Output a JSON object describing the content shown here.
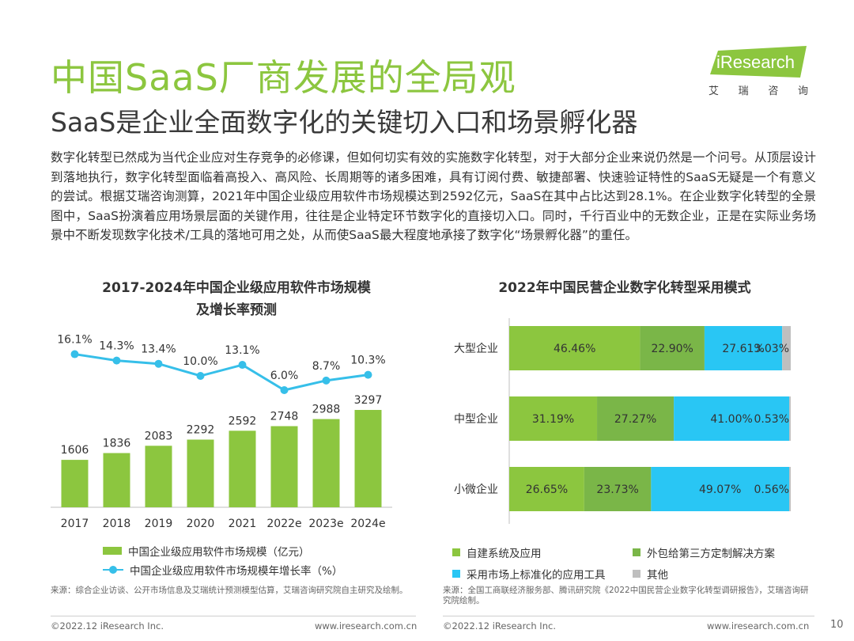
{
  "title": "中国SaaS厂商发展的全局观",
  "subtitle": "SaaS是企业全面数字化的关键切入口和场景孵化器",
  "logo": {
    "text": "iResearch",
    "sub": [
      "艾",
      "瑞",
      "咨",
      "询"
    ]
  },
  "body_text": "数字化转型已然成为当代企业应对生存竞争的必修课，但如何切实有效的实施数字化转型，对于大部分企业来说仍然是一个问号。从顶层设计到落地执行，数字化转型面临着高投入、高风险、长周期等的诸多困难，具有订阅付费、敏捷部署、快速验证特性的SaaS无疑是一个有意义的尝试。根据艾瑞咨询测算，2021年中国企业级应用软件市场规模达到2592亿元，SaaS在其中占比达到28.1%。在企业数字化转型的全景图中，SaaS扮演着应用场景层面的关键作用，往往是企业特定环节数字化的直接切入口。同时，千行百业中的无数企业，正是在实际业务场景中不断发现数字化技术/工具的落地可用之处，从而使SaaS最大程度地承接了数字化“场景孵化器”的重任。",
  "colors": {
    "green": "#8cc63f",
    "mid_green": "#7ab648",
    "blue": "#29c6f4",
    "line_blue": "#36bfe9",
    "gray": "#bfbfbf"
  },
  "chart_data": [
    {
      "type": "bar+line",
      "title_lines": [
        "2017-2024年中国企业级应用软件市场规模",
        "及增长率预测"
      ],
      "categories": [
        "2017",
        "2018",
        "2019",
        "2020",
        "2021",
        "2022e",
        "2023e",
        "2024e"
      ],
      "series": [
        {
          "name": "中国企业级应用软件市场规模（亿元）",
          "kind": "bar",
          "values": [
            1606,
            1836,
            2083,
            2292,
            2592,
            2748,
            2988,
            3297
          ],
          "labels": [
            "1606",
            "1836",
            "2083",
            "2292",
            "2592",
            "2748",
            "2988",
            "3297"
          ]
        },
        {
          "name": "中国企业级应用软件市场规模年增长率（%）",
          "kind": "line",
          "values": [
            16.1,
            14.3,
            13.4,
            10.0,
            13.1,
            6.0,
            8.7,
            10.3
          ],
          "labels": [
            "16.1%",
            "14.3%",
            "13.4%",
            "10.0%",
            "13.1%",
            "6.0%",
            "8.7%",
            "10.3%"
          ]
        }
      ],
      "legend_position": "bottom",
      "grid": false,
      "source": "来源：综合企业访谈、公开市场信息及艾瑞统计预测模型估算，艾瑞咨询研究院自主研究及绘制。"
    },
    {
      "type": "bar",
      "stacked": "percent",
      "orientation": "horizontal",
      "title": "2022年中国民营企业数字化转型采用模式",
      "categories": [
        "大型企业",
        "中型企业",
        "小微企业"
      ],
      "series": [
        {
          "name": "自建系统及应用",
          "values": [
            46.46,
            31.19,
            26.65
          ],
          "labels": [
            "46.46%",
            "31.19%",
            "26.65%"
          ]
        },
        {
          "name": "外包给第三方定制解决方案",
          "values": [
            22.9,
            27.27,
            23.73
          ],
          "labels": [
            "22.90%",
            "27.27%",
            "23.73%"
          ]
        },
        {
          "name": "采用市场上标准化的应用工具",
          "values": [
            27.61,
            41.0,
            49.07
          ],
          "labels": [
            "27.61%",
            "41.00%",
            "49.07%"
          ]
        },
        {
          "name": "其他",
          "values": [
            3.03,
            0.53,
            0.56
          ],
          "labels": [
            "3.03%",
            "0.53%",
            "0.56%"
          ]
        }
      ],
      "legend_position": "bottom",
      "grid": false,
      "source": "来源：全国工商联经济服务部、腾讯研究院《2022中国民营企业数字化转型调研报告》，艾瑞咨询研究院绘制。"
    }
  ],
  "footer": {
    "left_copyright": "©2022.12 iResearch Inc.",
    "left_url": "www.iresearch.com.cn",
    "right_copyright": "©2022.12 iResearch Inc.",
    "right_url": "www.iresearch.com.cn",
    "page_number": "10"
  }
}
